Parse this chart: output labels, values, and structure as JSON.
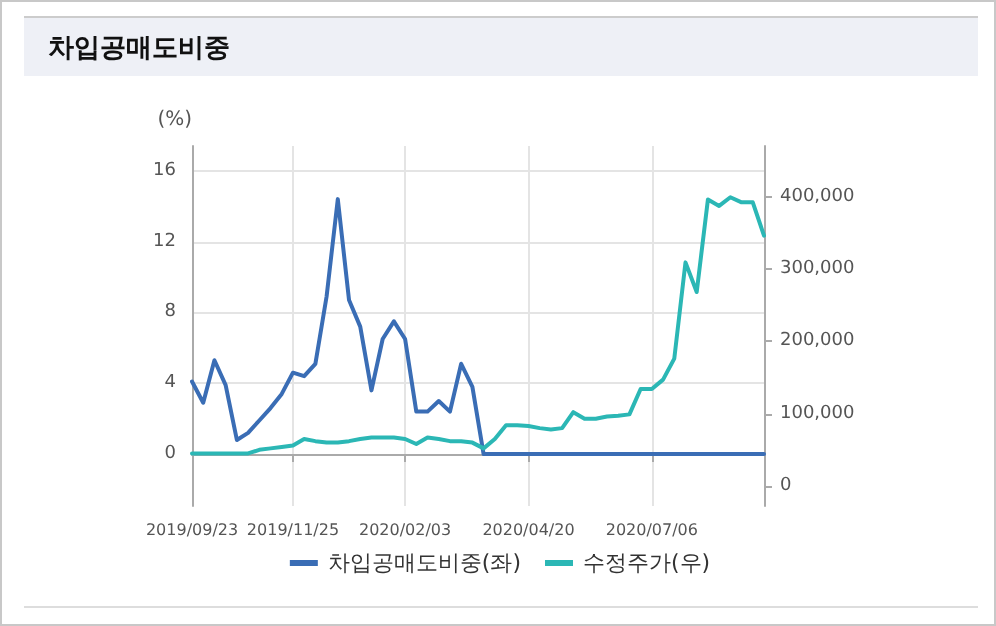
{
  "chart_data": {
    "type": "line",
    "title": "차입공매도비중",
    "ylabel": "(%)",
    "categories": [
      "2019/09/23",
      null,
      null,
      null,
      null,
      null,
      null,
      null,
      null,
      "2019/11/25",
      null,
      null,
      null,
      null,
      null,
      null,
      null,
      null,
      null,
      "2020/02/03",
      null,
      null,
      null,
      null,
      null,
      null,
      null,
      null,
      null,
      null,
      "2020/04/20",
      null,
      null,
      null,
      null,
      null,
      null,
      null,
      null,
      null,
      null,
      "2020/07/06",
      null,
      null,
      null,
      null,
      null,
      null,
      null,
      null,
      null,
      null
    ],
    "series": [
      {
        "name": "차입공매도비중(좌)",
        "color": "#3a6db5",
        "values": [
          4.1,
          2.9,
          5.3,
          3.9,
          0.8,
          1.2,
          1.9,
          2.6,
          3.4,
          4.6,
          4.4,
          5.1,
          8.9,
          14.4,
          8.7,
          7.2,
          3.6,
          6.5,
          7.5,
          6.5,
          2.4,
          2.4,
          3.0,
          2.4,
          5.1,
          3.8,
          0,
          0,
          0,
          0,
          0,
          0,
          0,
          0,
          0,
          0,
          0,
          0,
          0,
          0,
          0,
          0,
          0,
          0,
          0,
          0,
          0,
          0,
          0,
          0,
          0,
          0
        ]
      },
      {
        "name": "수정주가(우)",
        "color": "#2bb7b5",
        "axis": "y2",
        "values": [
          45000,
          45000,
          45000,
          45000,
          45000,
          45000,
          50000,
          52000,
          54000,
          56000,
          65000,
          62000,
          60000,
          60000,
          62000,
          65000,
          67000,
          67000,
          67000,
          65000,
          58000,
          67000,
          65000,
          62000,
          62000,
          60000,
          52000,
          65000,
          84000,
          84000,
          83000,
          80000,
          78000,
          80000,
          102000,
          93000,
          93000,
          96000,
          97000,
          99000,
          134000,
          134000,
          147000,
          176000,
          309000,
          268000,
          396000,
          387000,
          399000,
          392000,
          392000,
          346000
        ]
      }
    ],
    "ylim": [
      -2.93,
      17.4
    ],
    "yticks": [
      0,
      4,
      8,
      12,
      16
    ],
    "y2lim": [
      -27600,
      469800
    ],
    "y2ticks": [
      0,
      {
        "value": 100000,
        "label": "100,000"
      },
      {
        "value": 200000,
        "label": "200,000"
      },
      {
        "value": 300000,
        "label": "300,000"
      },
      {
        "value": 400000,
        "label": "400,000"
      }
    ],
    "grid": true,
    "legend": "bottom",
    "marker": "none",
    "line_style": "solid"
  }
}
